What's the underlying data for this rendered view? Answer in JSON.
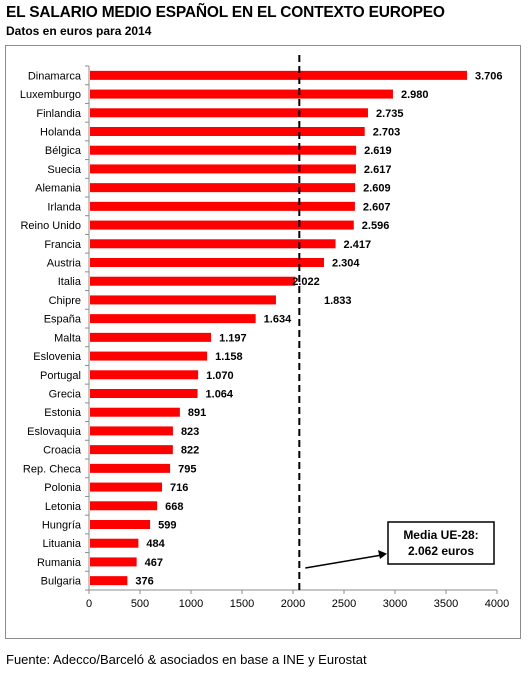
{
  "title": "EL SALARIO MEDIO ESPAÑOL EN EL CONTEXTO EUROPEO",
  "subtitle": "Datos en euros para 2014",
  "source": "Fuente: Adecco/Barceló & asociados en base a INE y Eurostat",
  "chart_data": {
    "type": "bar",
    "orientation": "horizontal",
    "title": "EL SALARIO MEDIO ESPAÑOL EN EL CONTEXTO EUROPEO",
    "subtitle": "Datos en euros para 2014",
    "categories": [
      "Dinamarca",
      "Luxemburgo",
      "Finlandia",
      "Holanda",
      "Bélgica",
      "Suecia",
      "Alemania",
      "Irlanda",
      "Reino Unido",
      "Francia",
      "Austria",
      "Italia",
      "Chipre",
      "España",
      "Malta",
      "Eslovenia",
      "Portugal",
      "Grecia",
      "Estonia",
      "Eslovaquia",
      "Croacia",
      "Rep. Checa",
      "Polonia",
      "Letonia",
      "Hungría",
      "Lituania",
      "Rumania",
      "Bulgaria"
    ],
    "values": [
      3706,
      2980,
      2735,
      2703,
      2619,
      2617,
      2609,
      2607,
      2596,
      2417,
      2304,
      2022,
      1833,
      1634,
      1197,
      1158,
      1070,
      1064,
      891,
      823,
      822,
      795,
      716,
      668,
      599,
      484,
      467,
      376
    ],
    "value_labels": [
      "3.706",
      "2.980",
      "2.735",
      "2.703",
      "2.619",
      "2.617",
      "2.609",
      "2.607",
      "2.596",
      "2.417",
      "2.304",
      "2.022",
      "1.833",
      "1.634",
      "1.197",
      "1.158",
      "1.070",
      "1.064",
      "891",
      "823",
      "822",
      "795",
      "716",
      "668",
      "599",
      "484",
      "467",
      "376"
    ],
    "xticks": [
      0,
      500,
      1000,
      1500,
      2000,
      2500,
      3000,
      3500,
      4000
    ],
    "xlim": [
      0,
      4000
    ],
    "bar_color": "#ff0000",
    "grid": false,
    "reference_line": {
      "value": 2062,
      "style": "dashed",
      "color": "#000000"
    },
    "annotation": {
      "lines": [
        "Media UE-28:",
        "2.062 euros"
      ]
    }
  }
}
